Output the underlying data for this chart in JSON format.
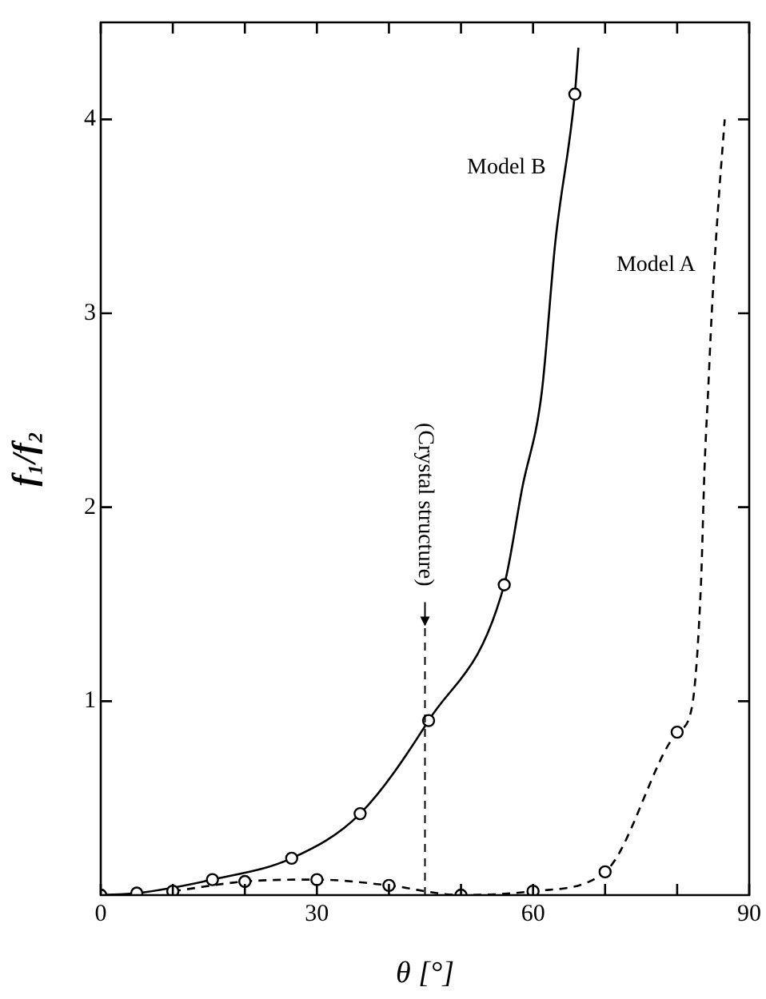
{
  "chart_data": {
    "type": "line",
    "xlabel": "θ [°]",
    "ylabel": "f₁/f₂",
    "xlim": [
      0,
      90
    ],
    "ylim": [
      0,
      4.5
    ],
    "xticks": [
      0,
      {
        "value": 10,
        "label": null
      },
      {
        "value": 20,
        "label": null
      },
      30,
      {
        "value": 40,
        "label": null
      },
      {
        "value": 50,
        "label": null
      },
      60,
      {
        "value": 70,
        "label": null
      },
      {
        "value": 80,
        "label": null
      },
      90
    ],
    "yticks": [
      1,
      2,
      3,
      4
    ],
    "grid": false,
    "legend": false,
    "series": [
      {
        "name": "Model B",
        "color": "#000000",
        "line_style": "solid",
        "marker": "none",
        "x": [
          0,
          5,
          15.5,
          26.5,
          36,
          45.5,
          56,
          58.5,
          61.2,
          63.1,
          65.8,
          66.3
        ],
        "values": [
          0,
          0.01,
          0.08,
          0.19,
          0.42,
          0.9,
          1.6,
          2.1,
          2.59,
          3.37,
          4.13,
          4.37
        ]
      },
      {
        "type": "scatter",
        "color": "#000000",
        "marker": "circle",
        "x": [
          0,
          5,
          15.5,
          26.5,
          36,
          45.5,
          56,
          65.8
        ],
        "values": [
          0,
          0.01,
          0.08,
          0.19,
          0.42,
          0.9,
          1.6,
          4.13
        ]
      },
      {
        "name": "Model A",
        "color": "#000000",
        "line_style": "dashed",
        "marker": "none",
        "x": [
          10,
          20,
          30,
          40,
          50,
          60,
          70,
          80,
          82,
          83.3,
          83.8,
          84.3,
          84.8,
          85.6,
          86.6
        ],
        "values": [
          0.02,
          0.07,
          0.08,
          0.05,
          0,
          0.02,
          0.12,
          0.84,
          0.96,
          1.6,
          2.2,
          2.6,
          3.0,
          3.5,
          4.0
        ]
      },
      {
        "type": "scatter",
        "color": "#000000",
        "marker": "circle",
        "x": [
          10,
          20,
          30,
          40,
          50,
          60,
          70,
          80
        ],
        "values": [
          0.02,
          0.07,
          0.08,
          0.05,
          0,
          0.02,
          0.12,
          0.84
        ]
      }
    ],
    "ref_lines": [
      {
        "axis": "x",
        "value": 45,
        "label": "(Crystal structure)",
        "line_style": "dashed"
      }
    ]
  }
}
